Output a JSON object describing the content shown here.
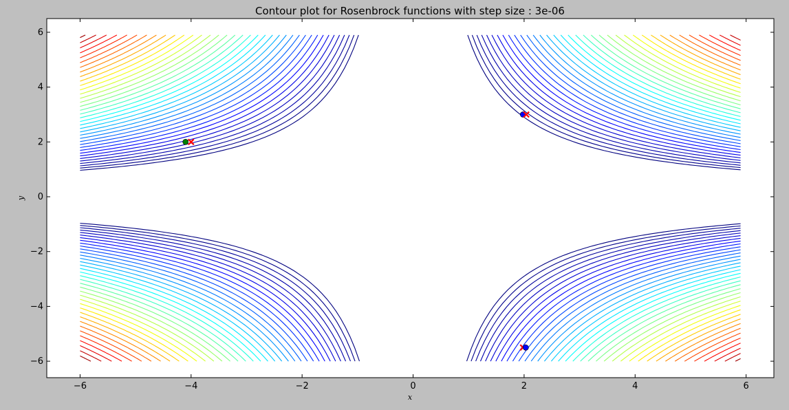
{
  "chart_data": {
    "type": "contour",
    "title": "Contour plot for Rosenbrock functions with step size : 3e-06",
    "xlabel": "x",
    "ylabel": "y",
    "xlim": [
      -6.6,
      6.5
    ],
    "ylim": [
      -6.6,
      6.5
    ],
    "xticks": [
      -6,
      -4,
      -2,
      0,
      2,
      4,
      6
    ],
    "yticks": [
      -6,
      -4,
      -2,
      0,
      2,
      4,
      6
    ],
    "grid": false,
    "contour_domain": {
      "x": [
        -6,
        5.9
      ],
      "y": [
        -6,
        5.9
      ]
    },
    "contour_levels": {
      "count": 38,
      "first_level": 5.8,
      "spacing": "square-root"
    },
    "colormap": [
      "#00007f",
      "#0000ff",
      "#007fff",
      "#00ffff",
      "#7fff7f",
      "#ffff00",
      "#ff7f00",
      "#ff0000",
      "#7f0000"
    ],
    "point_groups": [
      {
        "color": "#0000ff",
        "marker": "circle",
        "x": 1.98,
        "y": 3.0
      },
      {
        "color": "#ff0000",
        "marker": "x",
        "x": 2.04,
        "y": 3.0
      },
      {
        "color": "#008000",
        "marker": "circle",
        "x": -4.1,
        "y": 2.0
      },
      {
        "color": "#ff0000",
        "marker": "x",
        "x": -4.0,
        "y": 2.0
      },
      {
        "color": "#ff0000",
        "marker": "x",
        "x": 1.98,
        "y": -5.5
      },
      {
        "color": "#0000ff",
        "marker": "circle",
        "x": 2.03,
        "y": -5.5
      }
    ]
  }
}
